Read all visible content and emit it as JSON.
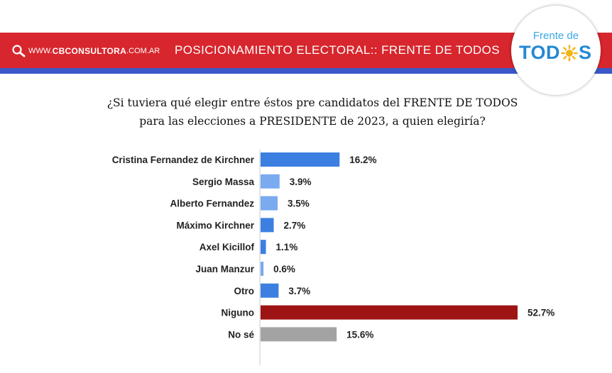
{
  "header": {
    "site_www": "WWW.",
    "site_brand": "CBCONSULTORA",
    "site_tld": ".COM.AR",
    "title": "POSICIONAMIENTO ELECTORAL:: FRENTE DE TODOS",
    "logo_line1": "Frente de",
    "logo_part1": "TOD",
    "logo_part2": "S",
    "icon": "search-icon"
  },
  "question": {
    "line1": "¿Si tuviera qué elegir entre éstos pre candidatos del FRENTE DE TODOS",
    "line2": "para las elecciones a PRESIDENTE  de 2023, a quien elegiría?"
  },
  "chart_data": {
    "type": "bar",
    "orientation": "horizontal",
    "categories": [
      "Cristina Fernandez de Kirchner",
      "Sergio Massa",
      "Alberto Fernandez",
      "Máximo Kirchner",
      "Axel Kicillof",
      "Juan Manzur",
      "Otro",
      "Niguno",
      "No sé"
    ],
    "values": [
      16.2,
      3.9,
      3.5,
      2.7,
      1.1,
      0.6,
      3.7,
      52.7,
      15.6
    ],
    "value_labels": [
      "16.2%",
      "3.9%",
      "3.5%",
      "2.7%",
      "1.1%",
      "0.6%",
      "3.7%",
      "52.7%",
      "15.6%"
    ],
    "colors": [
      "#3d7fe0",
      "#7aaaf0",
      "#7aaaf0",
      "#3d7fe0",
      "#3d7fe0",
      "#7aaaf0",
      "#3d7fe0",
      "#9e1414",
      "#a3a3a3"
    ],
    "unit": "%",
    "grid": false,
    "legend": "none"
  }
}
